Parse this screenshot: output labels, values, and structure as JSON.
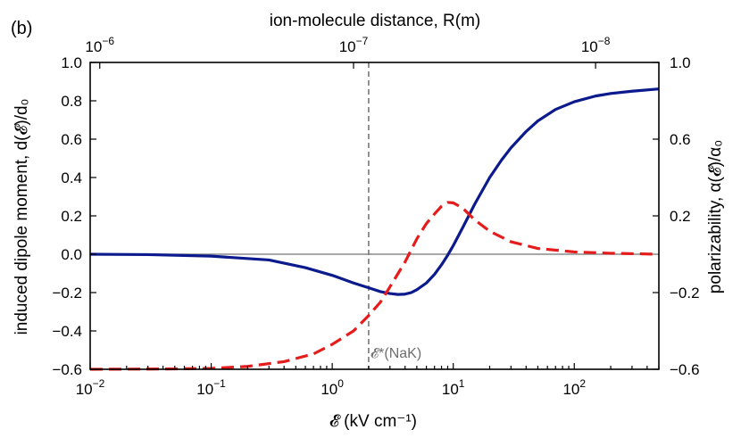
{
  "chart_data": {
    "type": "line",
    "panel_label": "(b)",
    "xlabel": "𝓔 (kV cm⁻¹)",
    "ylabel": "induced dipole moment, d(𝓔)/d₀",
    "y2label": "polarizability, α(𝓔)/α₀",
    "x2label": "ion-molecule distance, R(m)",
    "xscale": "log",
    "xlim": [
      0.01,
      500
    ],
    "ylim": [
      -0.6,
      1.0
    ],
    "y2lim": [
      -0.6,
      1.0
    ],
    "x_ticks": [
      {
        "value": 0.01,
        "base": "10",
        "exp": "−2"
      },
      {
        "value": 0.1,
        "base": "10",
        "exp": "−1"
      },
      {
        "value": 1,
        "base": "10",
        "exp": "0"
      },
      {
        "value": 10,
        "base": "10",
        "exp": "1"
      },
      {
        "value": 100,
        "base": "10",
        "exp": "2"
      }
    ],
    "x2_ticks": [
      {
        "value": 0.012,
        "base": "10",
        "exp": "−6"
      },
      {
        "value": 1.5,
        "base": "10",
        "exp": "−7"
      },
      {
        "value": 150,
        "base": "10",
        "exp": "−8"
      }
    ],
    "y_ticks": [
      "1.0",
      "0.8",
      "0.6",
      "0.4",
      "0.2",
      "0.0",
      "−0.2",
      "−0.4",
      "−0.6"
    ],
    "y_tick_values": [
      1.0,
      0.8,
      0.6,
      0.4,
      0.2,
      0.0,
      -0.2,
      -0.4,
      -0.6
    ],
    "y2_ticks": [
      "1.0",
      "0.6",
      "0.2",
      "−0.2",
      "−0.6"
    ],
    "y2_tick_values": [
      1.0,
      0.6,
      0.2,
      -0.2,
      -0.6
    ],
    "series": [
      {
        "name": "induced dipole moment",
        "axis": "left",
        "color": "#0b1a8c",
        "style": "solid",
        "x": [
          0.01,
          0.03,
          0.1,
          0.3,
          0.6,
          1.0,
          1.5,
          2.0,
          2.5,
          3.0,
          3.5,
          4.0,
          4.5,
          5.0,
          6.0,
          7.0,
          8.0,
          9.0,
          10.0,
          12.0,
          15.0,
          20.0,
          25.0,
          30.0,
          40.0,
          50.0,
          70.0,
          100.0,
          150.0,
          200.0,
          300.0,
          500.0
        ],
        "y": [
          0.0,
          -0.002,
          -0.01,
          -0.03,
          -0.07,
          -0.11,
          -0.15,
          -0.175,
          -0.195,
          -0.205,
          -0.21,
          -0.208,
          -0.2,
          -0.185,
          -0.15,
          -0.105,
          -0.055,
          -0.005,
          0.045,
          0.14,
          0.26,
          0.4,
          0.49,
          0.555,
          0.64,
          0.695,
          0.755,
          0.795,
          0.825,
          0.838,
          0.85,
          0.862
        ]
      },
      {
        "name": "polarizability",
        "axis": "right",
        "color": "#e51c1c",
        "style": "dashed",
        "x": [
          0.01,
          0.05,
          0.1,
          0.2,
          0.4,
          0.7,
          1.0,
          1.5,
          2.0,
          2.5,
          3.0,
          4.0,
          5.0,
          6.0,
          7.0,
          8.0,
          9.0,
          10.0,
          12.0,
          15.0,
          20.0,
          30.0,
          50.0,
          100.0,
          200.0,
          500.0
        ],
        "y": [
          -0.6,
          -0.598,
          -0.595,
          -0.585,
          -0.56,
          -0.52,
          -0.47,
          -0.4,
          -0.32,
          -0.25,
          -0.17,
          -0.04,
          0.08,
          0.16,
          0.21,
          0.25,
          0.27,
          0.268,
          0.24,
          0.18,
          0.12,
          0.065,
          0.03,
          0.012,
          0.005,
          0.0
        ]
      }
    ],
    "reference_lines": [
      {
        "type": "horizontal",
        "y": 0.0,
        "color": "#8a8a8a"
      },
      {
        "type": "vertical",
        "x": 2.0,
        "color": "#777777",
        "style": "dashed",
        "label": "𝓔*(NaK)"
      }
    ],
    "colors": {
      "dipole": "#0b1a8c",
      "polarizability": "#e51c1c",
      "zero_line": "#8a8a8a",
      "vline": "#777777"
    }
  }
}
